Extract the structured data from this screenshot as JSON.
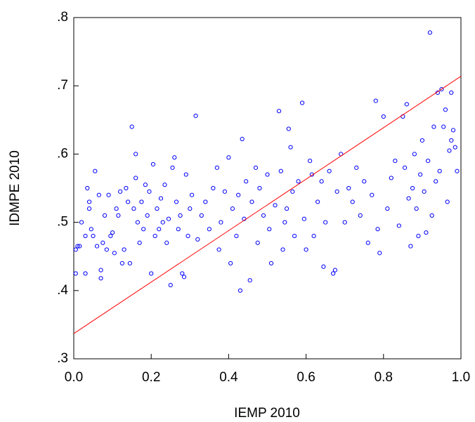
{
  "chart_data": {
    "type": "scatter",
    "x_label": "IEMP 2010",
    "y_label": "IDMPE 2010",
    "xlim": [
      0,
      1
    ],
    "ylim": [
      0.3,
      0.8
    ],
    "xticks": [
      {
        "value": 0,
        "label": "0.0"
      },
      0.2,
      0.4,
      0.6,
      0.8,
      {
        "value": 1,
        "label": "1.0"
      }
    ],
    "yticks": [
      {
        "value": 0.3,
        "label": ".3"
      },
      {
        "value": 0.4,
        "label": ".4"
      },
      {
        "value": 0.5,
        "label": ".5"
      },
      {
        "value": 0.6,
        "label": ".6"
      },
      {
        "value": 0.7,
        "label": ".7"
      },
      {
        "value": 0.8,
        "label": ".8"
      }
    ],
    "x": [
      0.005,
      0.01,
      0.005,
      0.015,
      0.02,
      0.03,
      0.03,
      0.035,
      0.04,
      0.04,
      0.045,
      0.05,
      0.055,
      0.06,
      0.065,
      0.07,
      0.07,
      0.075,
      0.08,
      0.085,
      0.09,
      0.095,
      0.1,
      0.105,
      0.11,
      0.115,
      0.12,
      0.125,
      0.13,
      0.135,
      0.14,
      0.145,
      0.15,
      0.155,
      0.16,
      0.16,
      0.165,
      0.17,
      0.175,
      0.18,
      0.185,
      0.19,
      0.195,
      0.2,
      0.205,
      0.21,
      0.215,
      0.22,
      0.225,
      0.23,
      0.235,
      0.24,
      0.245,
      0.25,
      0.255,
      0.26,
      0.265,
      0.27,
      0.275,
      0.28,
      0.285,
      0.29,
      0.295,
      0.3,
      0.305,
      0.315,
      0.32,
      0.33,
      0.34,
      0.35,
      0.36,
      0.37,
      0.375,
      0.38,
      0.39,
      0.4,
      0.405,
      0.41,
      0.42,
      0.425,
      0.43,
      0.435,
      0.44,
      0.445,
      0.455,
      0.46,
      0.47,
      0.475,
      0.48,
      0.49,
      0.5,
      0.505,
      0.51,
      0.52,
      0.53,
      0.535,
      0.54,
      0.545,
      0.55,
      0.555,
      0.56,
      0.565,
      0.57,
      0.58,
      0.59,
      0.595,
      0.6,
      0.61,
      0.615,
      0.62,
      0.63,
      0.64,
      0.645,
      0.65,
      0.66,
      0.67,
      0.675,
      0.68,
      0.69,
      0.7,
      0.71,
      0.72,
      0.73,
      0.74,
      0.75,
      0.76,
      0.77,
      0.78,
      0.785,
      0.79,
      0.8,
      0.81,
      0.82,
      0.83,
      0.84,
      0.85,
      0.855,
      0.86,
      0.865,
      0.87,
      0.875,
      0.88,
      0.885,
      0.89,
      0.895,
      0.9,
      0.905,
      0.91,
      0.915,
      0.92,
      0.925,
      0.93,
      0.935,
      0.94,
      0.945,
      0.95,
      0.955,
      0.96,
      0.965,
      0.97,
      0.975,
      0.98,
      0.985,
      0.99,
      0.975
    ],
    "series": [
      {
        "color": "#0000ff",
        "values": [
          0.46,
          0.465,
          0.425,
          0.465,
          0.5,
          0.48,
          0.425,
          0.55,
          0.52,
          0.53,
          0.49,
          0.48,
          0.575,
          0.465,
          0.54,
          0.43,
          0.418,
          0.47,
          0.51,
          0.46,
          0.54,
          0.48,
          0.485,
          0.455,
          0.52,
          0.51,
          0.545,
          0.44,
          0.46,
          0.55,
          0.53,
          0.44,
          0.64,
          0.52,
          0.565,
          0.6,
          0.5,
          0.47,
          0.53,
          0.49,
          0.555,
          0.51,
          0.545,
          0.425,
          0.585,
          0.48,
          0.52,
          0.49,
          0.535,
          0.5,
          0.555,
          0.47,
          0.505,
          0.408,
          0.58,
          0.595,
          0.53,
          0.49,
          0.51,
          0.425,
          0.42,
          0.57,
          0.48,
          0.52,
          0.54,
          0.656,
          0.475,
          0.51,
          0.53,
          0.49,
          0.55,
          0.58,
          0.46,
          0.5,
          0.545,
          0.595,
          0.44,
          0.52,
          0.48,
          0.54,
          0.4,
          0.622,
          0.505,
          0.56,
          0.415,
          0.53,
          0.58,
          0.47,
          0.55,
          0.51,
          0.57,
          0.49,
          0.44,
          0.525,
          0.663,
          0.575,
          0.46,
          0.5,
          0.52,
          0.637,
          0.61,
          0.545,
          0.48,
          0.56,
          0.675,
          0.505,
          0.46,
          0.59,
          0.57,
          0.48,
          0.53,
          0.56,
          0.435,
          0.5,
          0.575,
          0.425,
          0.43,
          0.545,
          0.6,
          0.5,
          0.55,
          0.53,
          0.58,
          0.51,
          0.56,
          0.47,
          0.54,
          0.678,
          0.49,
          0.455,
          0.655,
          0.52,
          0.565,
          0.59,
          0.495,
          0.655,
          0.58,
          0.673,
          0.535,
          0.465,
          0.55,
          0.6,
          0.52,
          0.48,
          0.57,
          0.62,
          0.545,
          0.485,
          0.59,
          0.778,
          0.51,
          0.64,
          0.56,
          0.69,
          0.575,
          0.695,
          0.64,
          0.665,
          0.53,
          0.605,
          0.69,
          0.635,
          0.61,
          0.575,
          0.62
        ]
      }
    ],
    "fit_line": {
      "color": "#ff0000",
      "x": [
        0,
        1
      ],
      "y": [
        0.337,
        0.714
      ]
    }
  }
}
